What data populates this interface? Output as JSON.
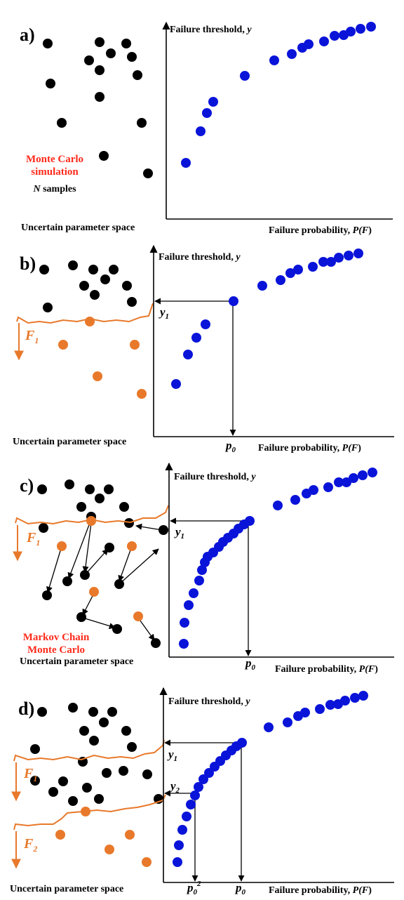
{
  "panels": [
    {
      "label": "a)",
      "y_axis_label": "Failure threshold, ",
      "y_axis_var": "y",
      "x_axis_label": "Failure probability, ",
      "x_axis_var_pre": "P(",
      "x_axis_var_F": "F",
      "x_axis_var_post": ")",
      "space_label": "Uncertain parameter space",
      "method_line1": "Monte Carlo",
      "method_line2": "simulation",
      "samples_N": "N",
      "samples_text": " samples"
    },
    {
      "label": "b)",
      "y_axis_label": "Failure threshold, ",
      "y_axis_var": "y",
      "x_axis_label": "Failure probability, ",
      "x_axis_var_pre": "P(",
      "x_axis_var_F": "F",
      "x_axis_var_post": ")",
      "space_label": "Uncertain parameter space",
      "region_F": "F",
      "region_sub": "1",
      "threshold_y": "y",
      "threshold_sub": "1",
      "prob_p": "p",
      "prob_sub": "0"
    },
    {
      "label": "c)",
      "y_axis_label": "Failure threshold, ",
      "y_axis_var": "y",
      "x_axis_label": "Failure probability, ",
      "x_axis_var_pre": "P(",
      "x_axis_var_F": "F",
      "x_axis_var_post": ")",
      "space_label": "Uncertain parameter space",
      "region_F": "F",
      "region_sub": "1",
      "threshold_y": "y",
      "threshold_sub": "1",
      "prob_p": "p",
      "prob_sub": "0",
      "method_line1": "Markov Chain",
      "method_line2": "Monte Carlo"
    },
    {
      "label": "d)",
      "y_axis_label": "Failure threshold, ",
      "y_axis_var": "y",
      "x_axis_label": "Failure probability, ",
      "x_axis_var_pre": "P(",
      "x_axis_var_F": "F",
      "x_axis_var_post": ")",
      "space_label": "Uncertain parameter space",
      "region1_F": "F",
      "region1_sub": "1",
      "region2_F": "F",
      "region2_sub": "2",
      "threshold1_y": "y",
      "threshold1_sub": "1",
      "threshold2_y": "y",
      "threshold2_sub": "2",
      "prob1_p": "p",
      "prob1_sub": "0",
      "prob2_p": "p",
      "prob2_sub": "0",
      "prob2_sup": "2"
    }
  ],
  "colors": {
    "sample_black": "#000000",
    "sample_orange": "#e8792b",
    "curve_blue": "#0a14d9",
    "boundary_orange": "#e8792b",
    "method_red": "#ff2a1a"
  }
}
